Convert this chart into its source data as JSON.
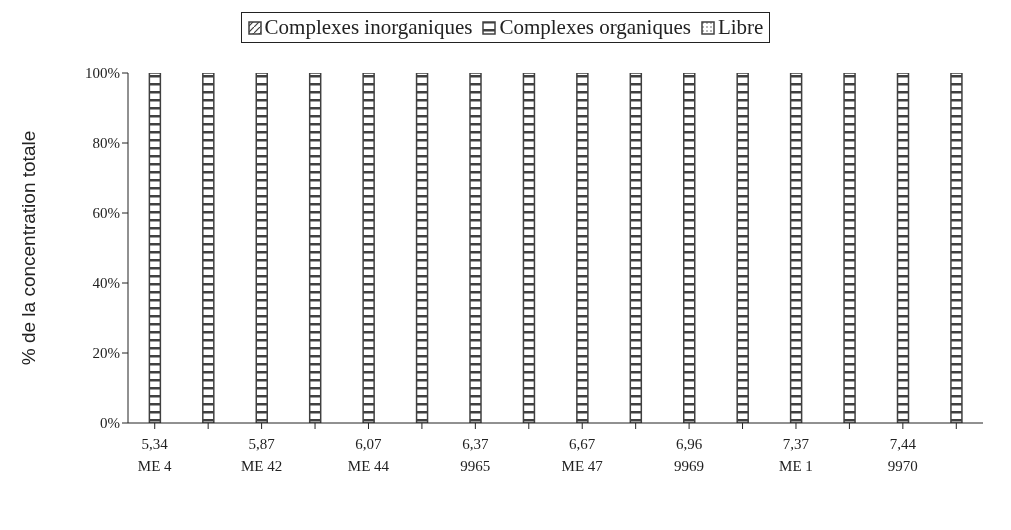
{
  "chart_data": {
    "type": "bar",
    "stacked": true,
    "ylabel": "% de la concentration totale",
    "categories": [
      "5,34\nME 4",
      null,
      "5,87\nME 42",
      null,
      "6,07\nME 44",
      null,
      "6,37\n9965",
      null,
      "6,67\nME 47",
      null,
      "6,96\n9969",
      null,
      "7,37\nME 1",
      null,
      "7,44\n9970",
      null
    ],
    "series": [
      {
        "name": "Complexes inorganiques",
        "color": "#404040",
        "values": [
          0,
          0,
          0,
          0,
          0,
          0,
          0,
          0,
          0,
          0,
          0,
          0,
          0,
          0,
          0,
          0
        ]
      },
      {
        "name": "Complexes organiques",
        "color": "#404040",
        "values": [
          100,
          100,
          100,
          100,
          100,
          100,
          100,
          100,
          100,
          100,
          100,
          100,
          100,
          100,
          100,
          100
        ]
      },
      {
        "name": "Libre",
        "color": "#404040",
        "values": [
          0,
          0,
          0,
          0,
          0,
          0,
          0,
          0,
          0,
          0,
          0,
          0,
          0,
          0,
          0,
          0
        ]
      }
    ],
    "ylim": [
      0,
      100
    ],
    "yticks": [
      {
        "value": 0,
        "label": "0%"
      },
      {
        "value": 20,
        "label": "20%"
      },
      {
        "value": 40,
        "label": "40%"
      },
      {
        "value": 60,
        "label": "60%"
      },
      {
        "value": 80,
        "label": "80%"
      },
      {
        "value": 100,
        "label": "100%"
      }
    ],
    "grid": false,
    "legend": "top"
  }
}
